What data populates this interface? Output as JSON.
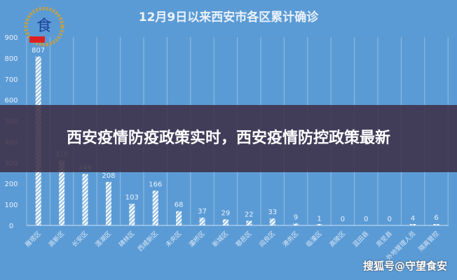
{
  "chart_data": {
    "type": "bar",
    "title": "12月9日以来西安市各区累计确诊",
    "categories": [
      "雁塔区",
      "高新区",
      "长安区",
      "莲湖区",
      "碑林区",
      "西咸新区",
      "未央区",
      "灞桥区",
      "新城区",
      "鄠邑区",
      "阎良区",
      "港务区",
      "临潼区",
      "高陵区",
      "蓝田县",
      "周至县",
      "外地管理人员",
      "隔离管控"
    ],
    "values": [
      807,
      310,
      246,
      208,
      103,
      166,
      68,
      37,
      29,
      22,
      33,
      9,
      1,
      0,
      0,
      0,
      4,
      6
    ],
    "ylim": [
      0,
      900
    ],
    "yticks": [
      0,
      100,
      200,
      300,
      400,
      500,
      600,
      700,
      800,
      900
    ],
    "grid": "vertical",
    "bar_style": "white hatched",
    "background": "#5b9bd5"
  },
  "banner": {
    "text": "西安疫情防疫政策实时，西安疫情防控政策最新"
  },
  "watermark": "搜狐号@守望食安",
  "logo": {
    "text": "食安",
    "badge": "守望"
  }
}
